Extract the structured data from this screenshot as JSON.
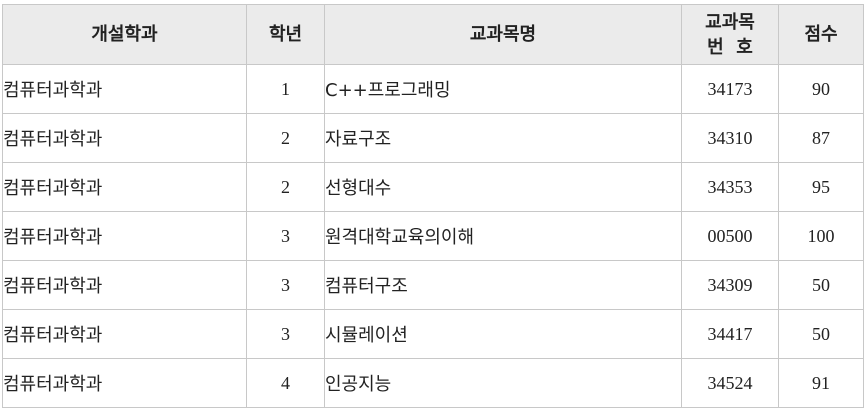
{
  "table": {
    "headers": {
      "dept": "개설학과",
      "year": "학년",
      "course_name": "교과목명",
      "course_code_line1": "교과목",
      "course_code_line2": "번  호",
      "score": "점수"
    },
    "rows": [
      {
        "dept": "컴퓨터과학과",
        "year": "1",
        "course_name": "C++프로그래밍",
        "course_code": "34173",
        "score": "90"
      },
      {
        "dept": "컴퓨터과학과",
        "year": "2",
        "course_name": "자료구조",
        "course_code": "34310",
        "score": "87"
      },
      {
        "dept": "컴퓨터과학과",
        "year": "2",
        "course_name": "선형대수",
        "course_code": "34353",
        "score": "95"
      },
      {
        "dept": "컴퓨터과학과",
        "year": "3",
        "course_name": "원격대학교육의이해",
        "course_code": "00500",
        "score": "100"
      },
      {
        "dept": "컴퓨터과학과",
        "year": "3",
        "course_name": "컴퓨터구조",
        "course_code": "34309",
        "score": "50"
      },
      {
        "dept": "컴퓨터과학과",
        "year": "3",
        "course_name": "시뮬레이션",
        "course_code": "34417",
        "score": "50"
      },
      {
        "dept": "컴퓨터과학과",
        "year": "4",
        "course_name": "인공지능",
        "course_code": "34524",
        "score": "91"
      }
    ]
  },
  "colors": {
    "header_bg": "#ebebeb",
    "border": "#c8c8c8",
    "text": "#222222"
  }
}
